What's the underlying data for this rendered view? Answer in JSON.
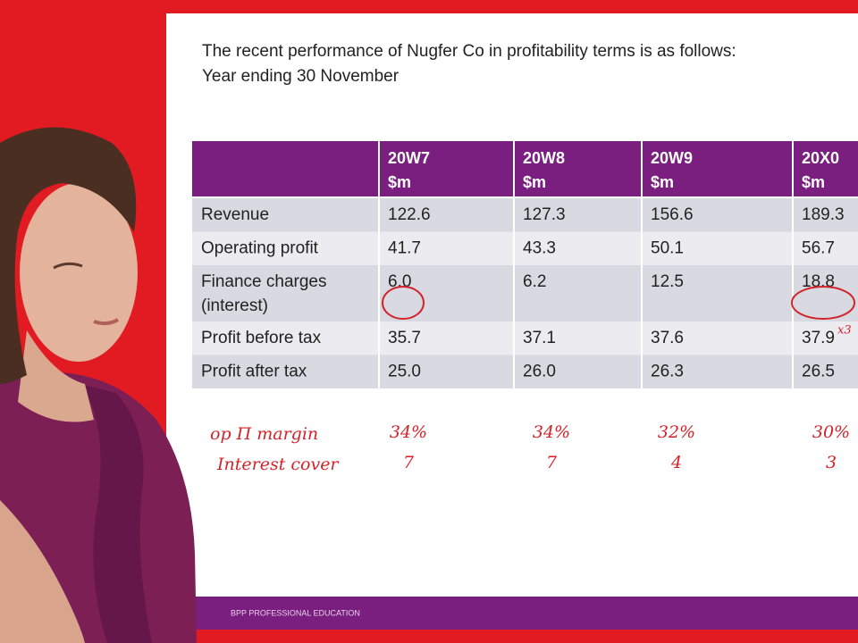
{
  "slide": {
    "intro": "The recent performance of Nugfer Co in profitability terms is as follows:",
    "subtitle": "Year ending 30 November",
    "footer": "BPP PROFESSIONAL EDUCATION"
  },
  "table": {
    "columns": [
      {
        "year": "20W7",
        "unit": "$m"
      },
      {
        "year": "20W8",
        "unit": "$m"
      },
      {
        "year": "20W9",
        "unit": "$m"
      },
      {
        "year": "20X0",
        "unit": "$m"
      }
    ],
    "rows": [
      {
        "label": [
          "Revenue"
        ],
        "cells": [
          "122.6",
          "127.3",
          "156.6",
          "189.3"
        ]
      },
      {
        "label": [
          "Operating profit"
        ],
        "cells": [
          "41.7",
          "43.3",
          "50.1",
          "56.7"
        ]
      },
      {
        "label": [
          "Finance charges",
          "(interest)"
        ],
        "cells": [
          "6.0",
          "6.2",
          "12.5",
          "18.8"
        ]
      },
      {
        "label": [
          "Profit before tax"
        ],
        "cells": [
          "35.7",
          "37.1",
          "37.6",
          "37.9"
        ]
      },
      {
        "label": [
          "Profit after tax"
        ],
        "cells": [
          "25.0",
          "26.0",
          "26.3",
          "26.5"
        ]
      }
    ]
  },
  "annotations": {
    "rows": [
      {
        "label": "op Π margin",
        "values": [
          "34%",
          "34%",
          "32%",
          "30%"
        ]
      },
      {
        "label": "Interest cover",
        "values": [
          "7",
          "7",
          "4",
          "3"
        ]
      }
    ],
    "note": "x3"
  }
}
